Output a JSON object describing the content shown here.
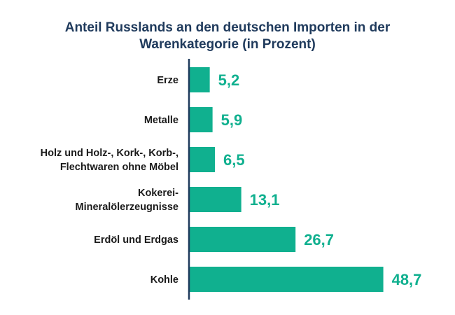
{
  "chart_data": {
    "type": "bar",
    "orientation": "horizontal",
    "title": "Anteil Russlands an den deutschen Importen in der Warenkategorie (in Prozent)",
    "title_lines": [
      "Anteil Russlands an den deutschen Importen in der",
      "Warenkategorie (in Prozent)"
    ],
    "categories": [
      [
        "Erze"
      ],
      [
        "Metalle"
      ],
      [
        "Holz und Holz-, Kork-, Korb-,",
        "Flechtwaren ohne Möbel"
      ],
      [
        "Kokerei-",
        "Mineralölerzeugnisse"
      ],
      [
        "Erdöl und Erdgas"
      ],
      [
        "Kohle"
      ]
    ],
    "values": [
      5.2,
      5.9,
      6.5,
      13.1,
      26.7,
      48.7
    ],
    "value_labels": [
      "5,2",
      "5,9",
      "6,5",
      "13,1",
      "26,7",
      "48,7"
    ],
    "xlim": [
      0,
      50
    ],
    "xlabel": "",
    "ylabel": "",
    "grid": false,
    "legend": "none",
    "colors": {
      "bar": "#10b08f",
      "value_text": "#10b08f",
      "axis": "#1f3a5c",
      "title": "#1f3a5c"
    }
  }
}
